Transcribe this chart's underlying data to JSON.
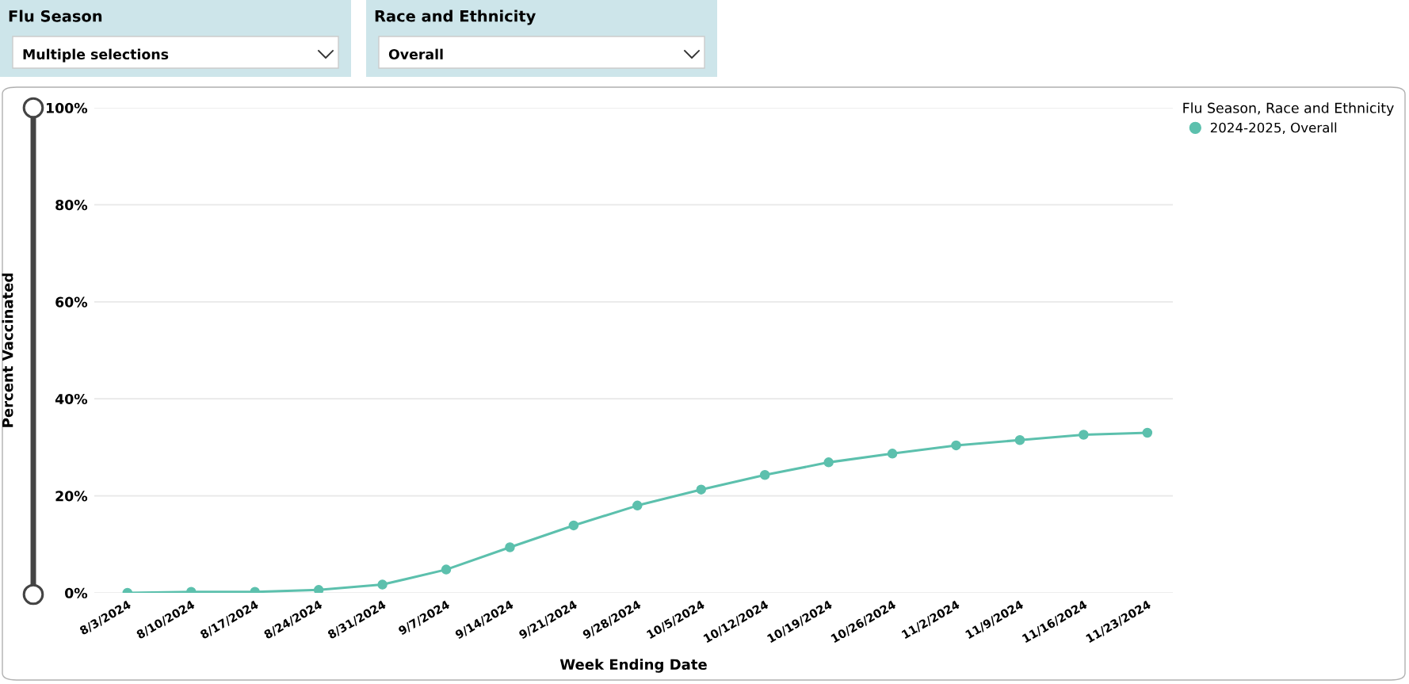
{
  "chart_data": {
    "type": "line",
    "xlabel": "Week Ending Date",
    "ylabel": "Percent Vaccinated",
    "legend_title": "Flu Season, Race and Ethnicity",
    "annotations": [
      "Flu Season",
      "Multiple selections",
      "Race and Ethnicity",
      "Overall"
    ],
    "categories": [
      "8/3/2024",
      "8/10/2024",
      "8/17/2024",
      "8/24/2024",
      "8/31/2024",
      "9/7/2024",
      "9/14/2024",
      "9/21/2024",
      "9/28/2024",
      "10/5/2024",
      "10/12/2024",
      "10/19/2024",
      "10/26/2024",
      "11/2/2024",
      "11/9/2024",
      "11/16/2024",
      "11/23/2024"
    ],
    "series": [
      {
        "name": "2024-2025, Overall",
        "color": "#5cc0ad",
        "values": [
          0.0,
          0.2,
          0.2,
          0.6,
          1.7,
          4.8,
          9.4,
          13.9,
          18.0,
          21.3,
          24.3,
          26.9,
          28.7,
          30.4,
          31.5,
          32.6,
          33.0
        ]
      }
    ],
    "ylim": [
      0,
      100
    ],
    "yticks": [
      {
        "value": 0,
        "label": "0%"
      },
      {
        "value": 20,
        "label": "20%"
      },
      {
        "value": 40,
        "label": "40%"
      },
      {
        "value": 60,
        "label": "60%"
      },
      {
        "value": 80,
        "label": "80%"
      },
      {
        "value": 100,
        "label": "100%"
      }
    ],
    "grid": "y",
    "legend": "top right",
    "marker": "circle",
    "line_style": "solid"
  }
}
